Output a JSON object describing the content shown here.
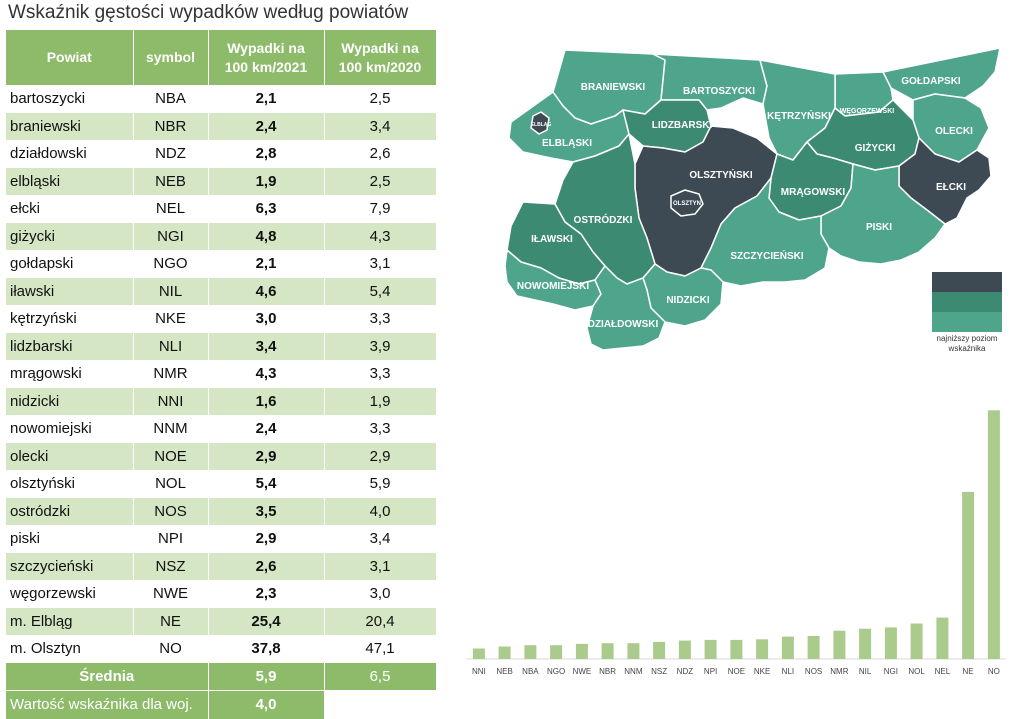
{
  "title": "Wskaźnik gęstości wypadków według powiatów",
  "table": {
    "headers": {
      "powiat": "Powiat",
      "symbol": "symbol",
      "v2021_line1": "Wypadki na",
      "v2021_line2": "100 km/2021",
      "v2020_line1": "Wypadki na",
      "v2020_line2": "100 km/2020"
    },
    "rows": [
      {
        "name": "bartoszycki",
        "symbol": "NBA",
        "v2021": "2,1",
        "v2020": "2,5"
      },
      {
        "name": "braniewski",
        "symbol": "NBR",
        "v2021": "2,4",
        "v2020": "3,4"
      },
      {
        "name": "działdowski",
        "symbol": "NDZ",
        "v2021": "2,8",
        "v2020": "2,6"
      },
      {
        "name": "elbląski",
        "symbol": "NEB",
        "v2021": "1,9",
        "v2020": "2,5"
      },
      {
        "name": "ełcki",
        "symbol": "NEL",
        "v2021": "6,3",
        "v2020": "7,9"
      },
      {
        "name": "giżycki",
        "symbol": "NGI",
        "v2021": "4,8",
        "v2020": "4,3"
      },
      {
        "name": "gołdapski",
        "symbol": "NGO",
        "v2021": "2,1",
        "v2020": "3,1"
      },
      {
        "name": "iławski",
        "symbol": "NIL",
        "v2021": "4,6",
        "v2020": "5,4"
      },
      {
        "name": "kętrzyński",
        "symbol": "NKE",
        "v2021": "3,0",
        "v2020": "3,3"
      },
      {
        "name": "lidzbarski",
        "symbol": "NLI",
        "v2021": "3,4",
        "v2020": "3,9"
      },
      {
        "name": "mrągowski",
        "symbol": "NMR",
        "v2021": "4,3",
        "v2020": "3,3"
      },
      {
        "name": "nidzicki",
        "symbol": "NNI",
        "v2021": "1,6",
        "v2020": "1,9"
      },
      {
        "name": "nowomiejski",
        "symbol": "NNM",
        "v2021": "2,4",
        "v2020": "3,3"
      },
      {
        "name": "olecki",
        "symbol": "NOE",
        "v2021": "2,9",
        "v2020": "2,9"
      },
      {
        "name": "olsztyński",
        "symbol": "NOL",
        "v2021": "5,4",
        "v2020": "5,9"
      },
      {
        "name": "ostródzki",
        "symbol": "NOS",
        "v2021": "3,5",
        "v2020": "4,0"
      },
      {
        "name": "piski",
        "symbol": "NPI",
        "v2021": "2,9",
        "v2020": "3,4"
      },
      {
        "name": "szczycieński",
        "symbol": "NSZ",
        "v2021": "2,6",
        "v2020": "3,1"
      },
      {
        "name": "węgorzewski",
        "symbol": "NWE",
        "v2021": "2,3",
        "v2020": "3,0"
      },
      {
        "name": "m. Elbląg",
        "symbol": "NE",
        "v2021": "25,4",
        "v2020": "20,4"
      },
      {
        "name": "m. Olsztyn",
        "symbol": "NO",
        "v2021": "37,8",
        "v2020": "47,1"
      }
    ],
    "average": {
      "label": "Średnia",
      "v2021": "5,9",
      "v2020": "6,5"
    },
    "voivodeship": {
      "label": "Wartość wskaźnika dla woj.",
      "value": "4,0"
    }
  },
  "map": {
    "colors": {
      "high": "#3e4a53",
      "mid": "#3d8a72",
      "low": "#4ea58c",
      "border": "#ffffff"
    },
    "districts": [
      {
        "label": "BRANIEWSKI",
        "level": "low"
      },
      {
        "label": "BARTOSZYCKI",
        "level": "low"
      },
      {
        "label": "GOŁDAPSKI",
        "level": "low"
      },
      {
        "label": "WĘGORZEWSKI",
        "level": "low"
      },
      {
        "label": "KĘTRZYŃSKI",
        "level": "low"
      },
      {
        "label": "OLECKI",
        "level": "low"
      },
      {
        "label": "ELBLĄG",
        "level": "high"
      },
      {
        "label": "ELBLĄSKI",
        "level": "low"
      },
      {
        "label": "LIDZBARSKI",
        "level": "mid"
      },
      {
        "label": "GIŻYCKI",
        "level": "mid"
      },
      {
        "label": "OLSZTYŃSKI",
        "level": "high"
      },
      {
        "label": "OLSZTYN",
        "level": "high"
      },
      {
        "label": "EŁCKI",
        "level": "high"
      },
      {
        "label": "MRĄGOWSKI",
        "level": "mid"
      },
      {
        "label": "OSTRÓDZKI",
        "level": "mid"
      },
      {
        "label": "IŁAWSKI",
        "level": "mid"
      },
      {
        "label": "PISKI",
        "level": "low"
      },
      {
        "label": "SZCZYCIEŃSKI",
        "level": "low"
      },
      {
        "label": "NOWOMIEJSKI",
        "level": "low"
      },
      {
        "label": "NIDZICKI",
        "level": "low"
      },
      {
        "label": "DZIAŁDOWSKI",
        "level": "low"
      }
    ],
    "legend": {
      "label_line1": "najniższy poziom",
      "label_line2": "wskaźnika"
    }
  },
  "chart_data": {
    "type": "bar",
    "categories": [
      "NNI",
      "NEB",
      "NBA",
      "NGO",
      "NWE",
      "NBR",
      "NNM",
      "NSZ",
      "NDZ",
      "NPI",
      "NOE",
      "NKE",
      "NLI",
      "NOS",
      "NMR",
      "NIL",
      "NGI",
      "NOL",
      "NEL",
      "NE",
      "NO"
    ],
    "values": [
      1.6,
      1.9,
      2.1,
      2.1,
      2.3,
      2.4,
      2.4,
      2.6,
      2.8,
      2.9,
      2.9,
      3.0,
      3.4,
      3.5,
      4.3,
      4.6,
      4.8,
      5.4,
      6.3,
      25.4,
      37.8
    ],
    "title": "",
    "xlabel": "",
    "ylabel": "",
    "ylim": [
      0,
      38
    ],
    "grid": false,
    "bar_color": "#abcb8d"
  }
}
